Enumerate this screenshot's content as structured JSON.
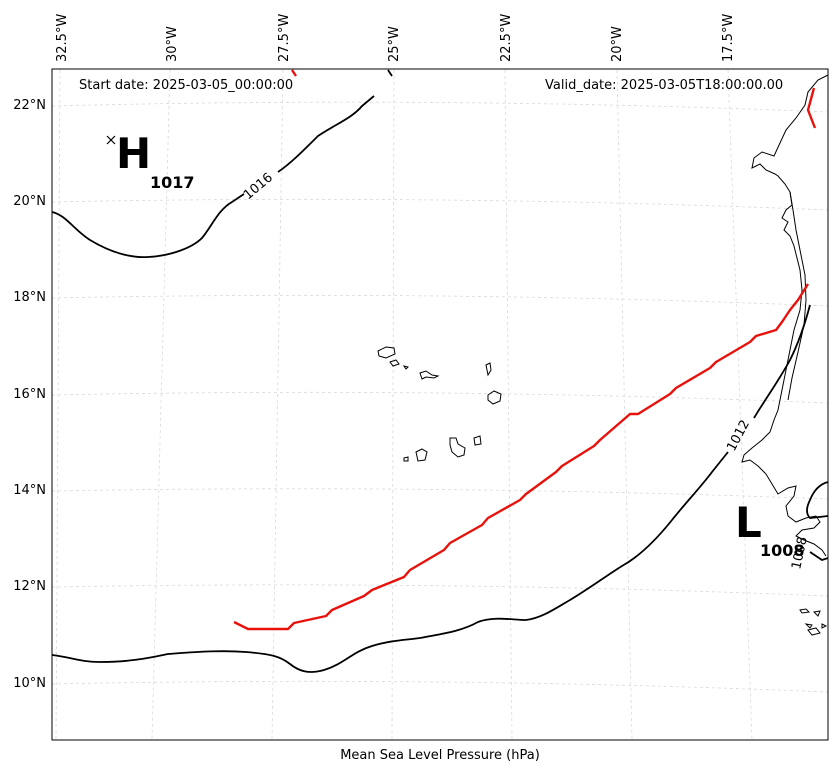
{
  "header": {
    "start_date": "Start date: 2025-03-05_00:00:00",
    "valid_date": "Valid_date: 2025-03-05T18:00:00.00"
  },
  "longitude_labels": [
    "32.5°W",
    "30°W",
    "27.5°W",
    "25°W",
    "22.5°W",
    "20°W",
    "17.5°W"
  ],
  "latitude_labels": [
    "22°N",
    "20°N",
    "18°N",
    "16°N",
    "14°N",
    "12°N",
    "10°N"
  ],
  "pressure_systems": [
    {
      "type": "high",
      "letter": "H",
      "value": "1017",
      "marker": "×"
    },
    {
      "type": "low",
      "letter": "L",
      "value": "1008"
    }
  ],
  "contours": [
    {
      "value": "1016",
      "color": "#000000"
    },
    {
      "value": "1012",
      "color": "#000000"
    },
    {
      "value": "1008",
      "color": "#000000"
    }
  ],
  "front": {
    "color": "#e8120c"
  },
  "coastline_color": "#000000",
  "grid": {
    "on": true,
    "color": "#d4d4d4",
    "style": "dashed"
  },
  "footer": {
    "caption": "Mean Sea Level Pressure (hPa)"
  }
}
